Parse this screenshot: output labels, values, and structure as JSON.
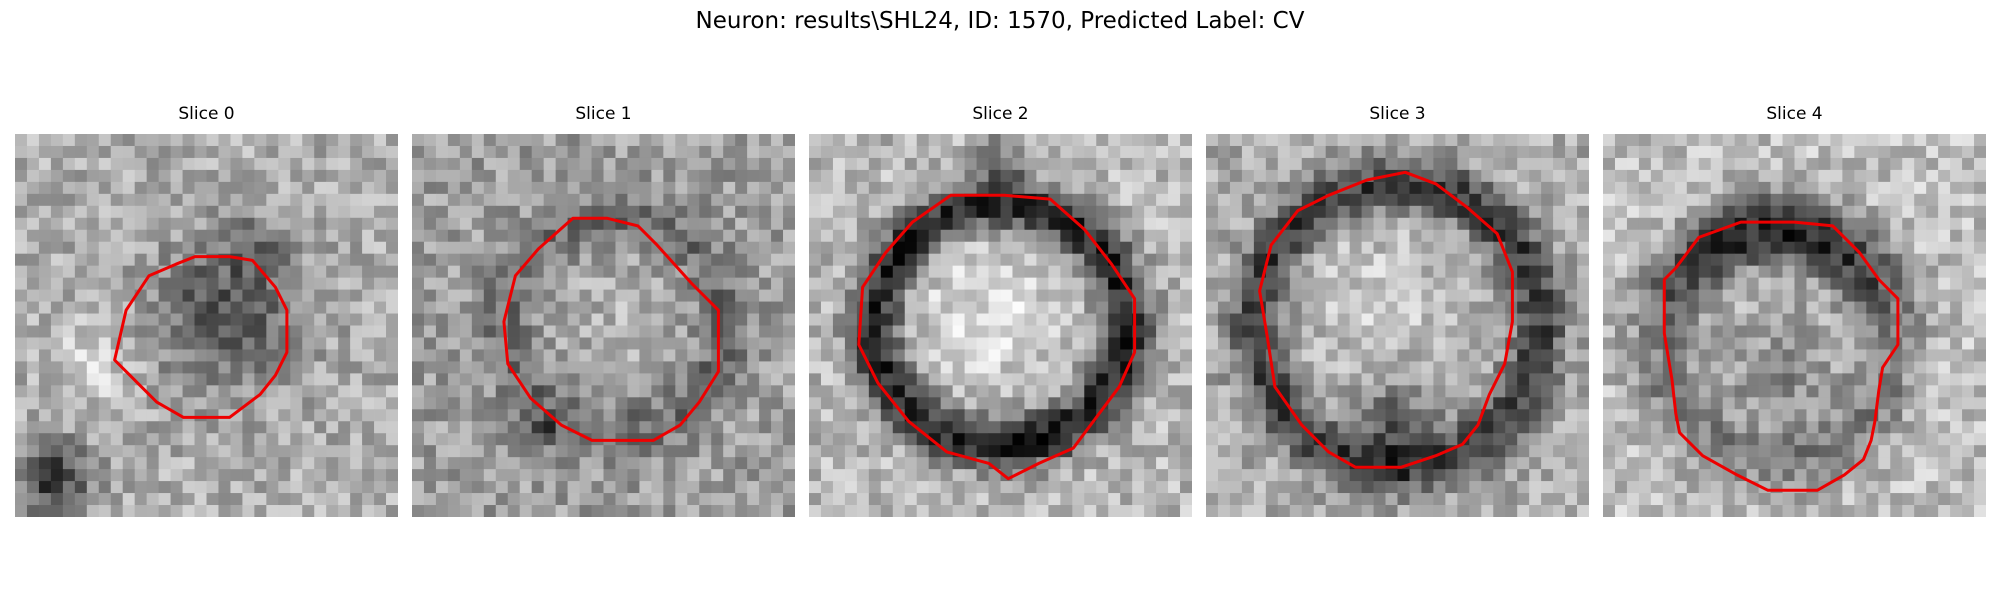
{
  "figure": {
    "title": "Neuron: results\\SHL24, ID: 1570, Predicted Label: CV"
  },
  "panels": [
    {
      "title": "Slice 0",
      "contour_color": "#ee0000",
      "pattern": "dark-blob"
    },
    {
      "title": "Slice 1",
      "contour_color": "#ee0000",
      "pattern": "faint-ring"
    },
    {
      "title": "Slice 2",
      "contour_color": "#ee0000",
      "pattern": "dark-ring-bright-center"
    },
    {
      "title": "Slice 3",
      "contour_color": "#ee0000",
      "pattern": "ring"
    },
    {
      "title": "Slice 4",
      "contour_color": "#ee0000",
      "pattern": "crescent"
    }
  ]
}
